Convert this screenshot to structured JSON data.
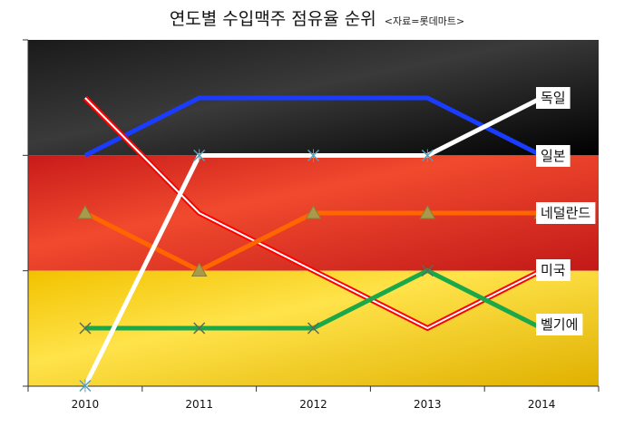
{
  "chart_data": {
    "type": "line",
    "title": "연도별 수입맥주 점유율 순위",
    "subtitle": "<자료=롯데마트>",
    "x": [
      "2010",
      "2011",
      "2012",
      "2013",
      "2014"
    ],
    "y_axis": {
      "inverted": true,
      "range": [
        1,
        6
      ],
      "tick_labels_shown": false
    },
    "background_bands": [
      "#000000",
      "#dd1f1f",
      "#ffd500"
    ],
    "series": [
      {
        "name": "독일",
        "values": [
          6,
          2,
          2,
          2,
          1
        ],
        "color": "#ffffff",
        "marker": "x"
      },
      {
        "name": "일본",
        "values": [
          2,
          1,
          1,
          1,
          2
        ],
        "color": "#1a3cff",
        "marker": "none"
      },
      {
        "name": "네덜란드",
        "values": [
          3,
          4,
          3,
          3,
          3
        ],
        "color": "#ff6600",
        "marker": "triangle"
      },
      {
        "name": "미국",
        "values": [
          1,
          3,
          4,
          5,
          4
        ],
        "color": "#ff0000",
        "marker": "none",
        "style": "double"
      },
      {
        "name": "벨기에",
        "values": [
          5,
          5,
          5,
          4,
          5
        ],
        "color": "#1aa84a",
        "marker": "x"
      }
    ]
  }
}
